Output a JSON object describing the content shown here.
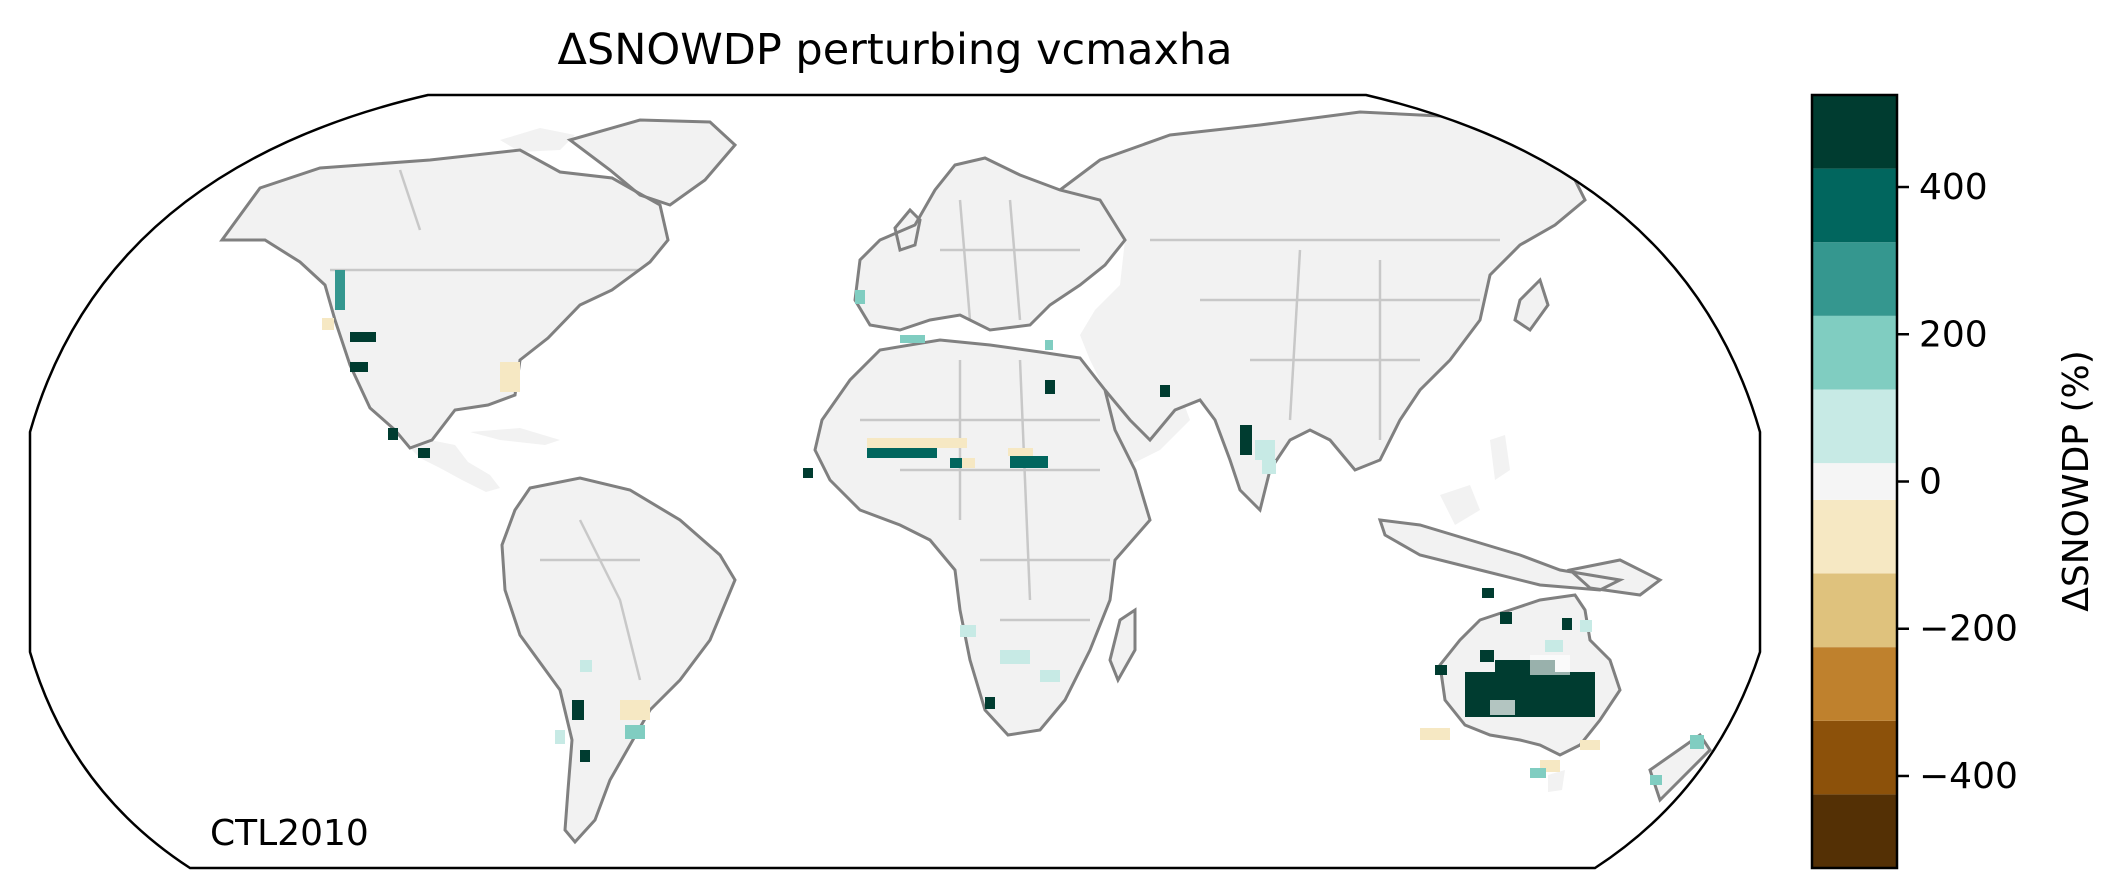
{
  "title": "ΔSNOWDP perturbing vcmaxha",
  "corner_label": "CTL2010",
  "colorbar": {
    "label": "ΔSNOWDP (%)",
    "range": [
      -525,
      525
    ],
    "tick_values": [
      -400,
      -200,
      0,
      200,
      400
    ],
    "tick_labels": [
      "−400",
      "−200",
      "0",
      "200",
      "400"
    ],
    "bins": [
      {
        "from": -525,
        "to": -425,
        "color": "#543005"
      },
      {
        "from": -425,
        "to": -325,
        "color": "#8c510a"
      },
      {
        "from": -325,
        "to": -225,
        "color": "#bf812d"
      },
      {
        "from": -225,
        "to": -125,
        "color": "#dfc27d"
      },
      {
        "from": -125,
        "to": -25,
        "color": "#f6e8c3"
      },
      {
        "from": -25,
        "to": 25,
        "color": "#f5f5f5"
      },
      {
        "from": 25,
        "to": 125,
        "color": "#c7eae5"
      },
      {
        "from": 125,
        "to": 225,
        "color": "#80cdc1"
      },
      {
        "from": 225,
        "to": 325,
        "color": "#35978f"
      },
      {
        "from": 325,
        "to": 425,
        "color": "#01665e"
      },
      {
        "from": 425,
        "to": 525,
        "color": "#003c30"
      }
    ]
  },
  "map": {
    "projection": "Robinson",
    "land_color": "#f2f2f2",
    "coastline_color": "#808080",
    "border_color": "#c8c8c8"
  }
}
